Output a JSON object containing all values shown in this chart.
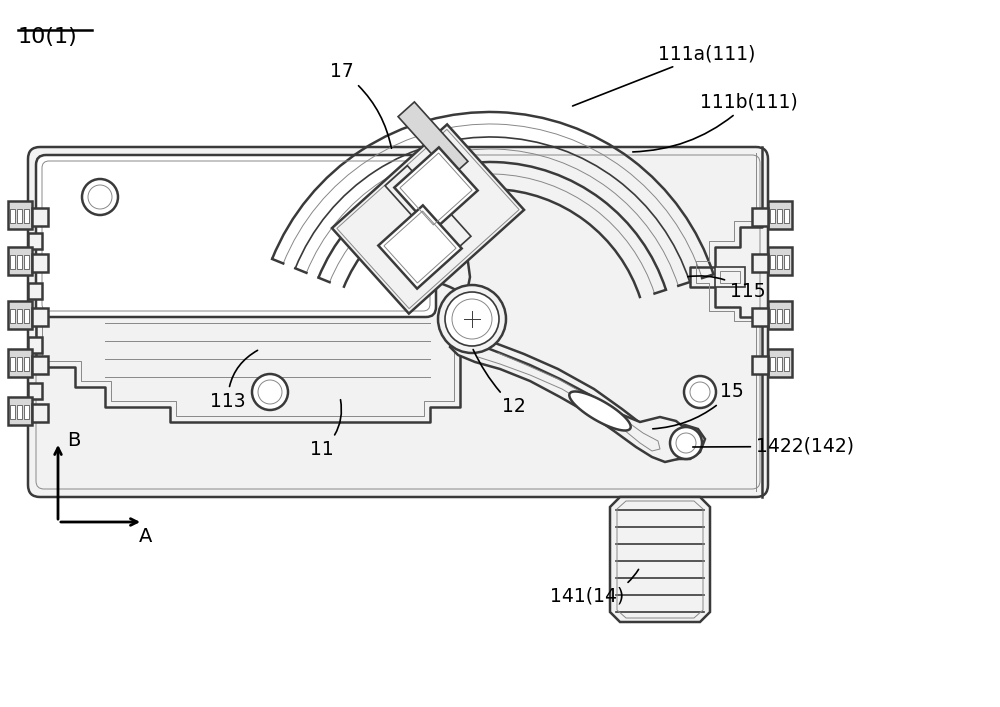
{
  "bg_color": "#ffffff",
  "lc": "#3a3a3a",
  "lc_gray": "#888888",
  "lc_light": "#aaaaaa",
  "fill_white": "#ffffff",
  "fill_light": "#f2f2f2",
  "fill_gray": "#d8d8d8",
  "labels": {
    "main_label": "10(1)",
    "label_17": "17",
    "label_111a": "111a(111)",
    "label_111b": "111b(111)",
    "label_115": "115",
    "label_12": "12",
    "label_113": "113",
    "label_11": "11",
    "label_15": "15",
    "label_142": "1422(142)",
    "label_141": "141(14)",
    "label_B": "B",
    "label_A": "A"
  },
  "figsize": [
    10.0,
    7.07
  ],
  "dpi": 100
}
